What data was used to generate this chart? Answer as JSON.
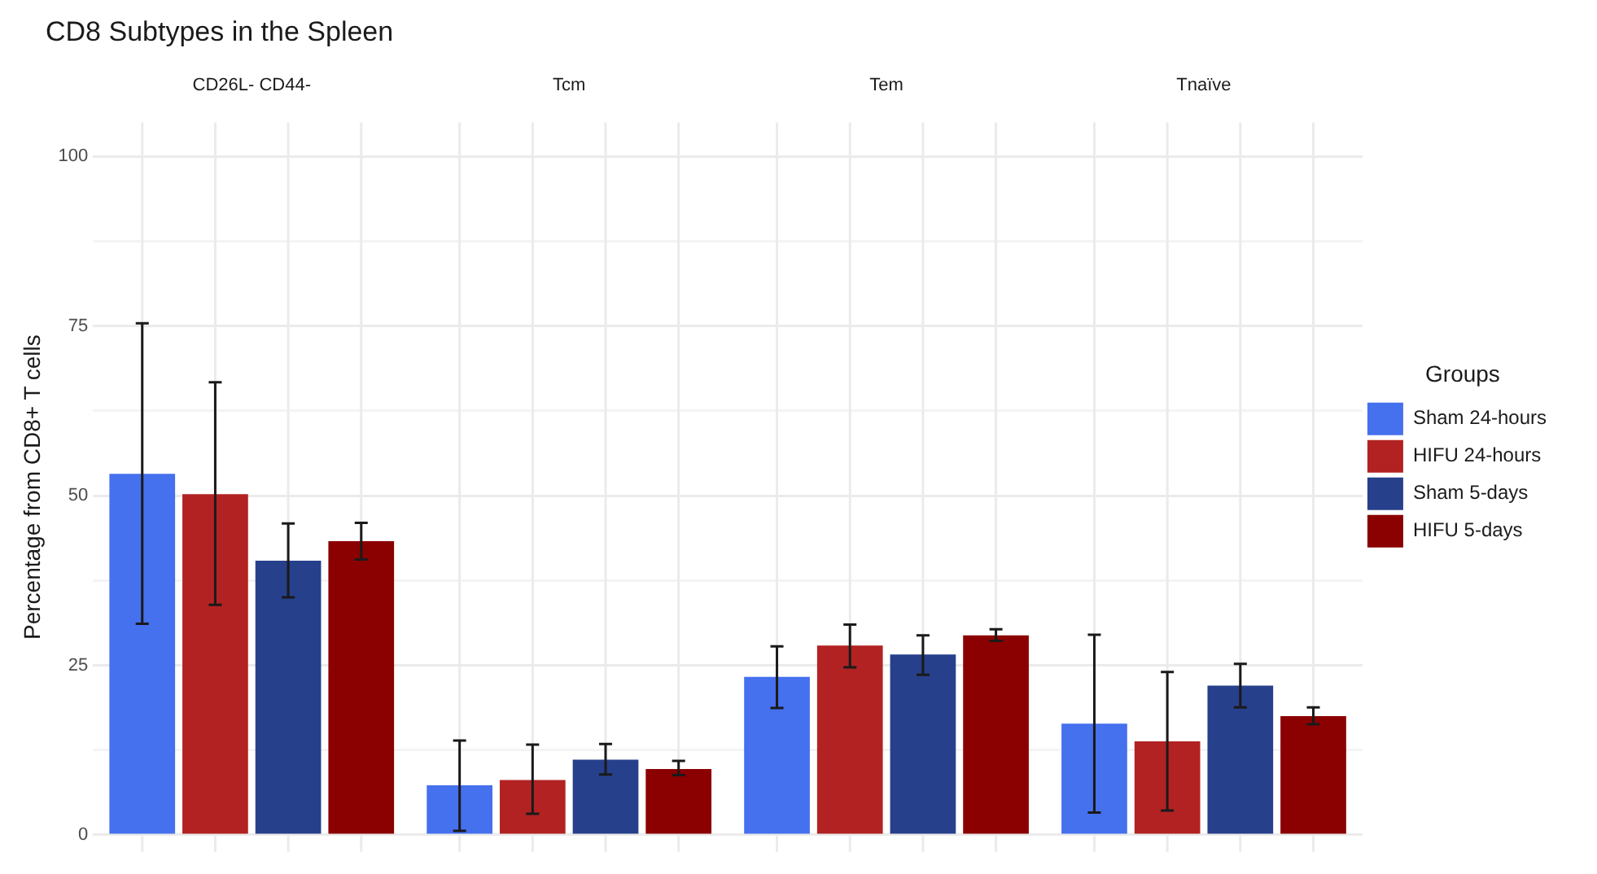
{
  "chart_data": {
    "type": "bar",
    "title": "CD8 Subtypes in the Spleen",
    "ylabel": "Percentage from CD8+ T cells",
    "categories": [
      "CD26L- CD44-",
      "Tcm",
      "Tem",
      "Tnaïve"
    ],
    "ylim": [
      -2.5,
      105
    ],
    "yticks": [
      0,
      {
        "value": 12.5,
        "label": null
      },
      25,
      {
        "value": 37.5,
        "label": null
      },
      50,
      {
        "value": 62.5,
        "label": null
      },
      75,
      {
        "value": 87.5,
        "label": null
      },
      100
    ],
    "grid": true,
    "legend": "right",
    "legend_title": "Groups",
    "series": [
      {
        "name": "Sham 24-hours",
        "color": "#4570ee",
        "values": [
          53.2,
          7.3,
          23.3,
          16.4
        ],
        "errors": [
          [
            31.1,
            75.4
          ],
          [
            0.6,
            13.9
          ],
          [
            18.7,
            27.8
          ],
          [
            3.3,
            29.5
          ]
        ]
      },
      {
        "name": "HIFU 24-hours",
        "color": "#b22222",
        "values": [
          50.2,
          8.1,
          27.9,
          13.8
        ],
        "errors": [
          [
            33.9,
            66.7
          ],
          [
            3.1,
            13.3
          ],
          [
            24.7,
            31.0
          ],
          [
            3.6,
            24.0
          ]
        ]
      },
      {
        "name": "Sham 5-days",
        "color": "#27408b",
        "values": [
          40.4,
          11.1,
          26.6,
          22.0
        ],
        "errors": [
          [
            35.0,
            45.9
          ],
          [
            8.9,
            13.4
          ],
          [
            23.6,
            29.4
          ],
          [
            18.8,
            25.2
          ]
        ]
      },
      {
        "name": "HIFU 5-days",
        "color": "#8b0000",
        "values": [
          43.3,
          9.7,
          29.4,
          17.5
        ],
        "errors": [
          [
            40.6,
            46.0
          ],
          [
            8.8,
            10.9
          ],
          [
            28.6,
            30.3
          ],
          [
            16.3,
            18.8
          ]
        ]
      }
    ]
  }
}
